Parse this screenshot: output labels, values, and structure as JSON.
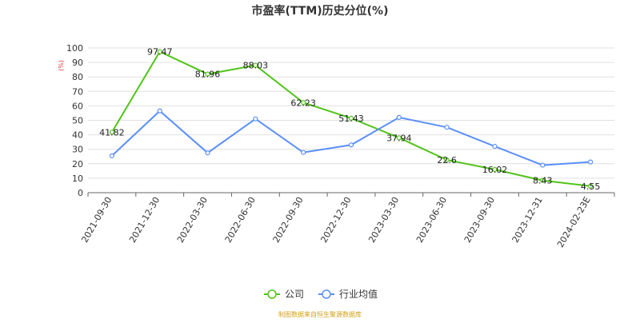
{
  "chart_data": {
    "type": "line",
    "title": "市盈率(TTM)历史分位(%)",
    "unit_label": "(%)",
    "categories": [
      "2021-09-30",
      "2021-12-30",
      "2022-03-30",
      "2022-06-30",
      "2022-09-30",
      "2022-12-30",
      "2023-03-30",
      "2023-06-30",
      "2023-09-30",
      "2023-12-31",
      "2024-02-23E"
    ],
    "series": [
      {
        "name": "公司",
        "color": "#52c41a",
        "values": [
          41.82,
          97.47,
          81.96,
          88.03,
          62.23,
          51.43,
          37.94,
          22.6,
          16.02,
          8.43,
          4.55
        ],
        "labels": [
          "41.82",
          "97.47",
          "81.96",
          "88.03",
          "62.23",
          "51.43",
          "37.94",
          "22.6",
          "16.02",
          "8.43",
          "4.55"
        ]
      },
      {
        "name": "行业均值",
        "color": "#5b8ff9",
        "values": [
          25.5,
          56.5,
          27.5,
          51,
          27.8,
          33,
          52,
          45.2,
          32,
          19,
          21.2
        ],
        "labels": []
      }
    ],
    "yticks": [
      0,
      10,
      20,
      30,
      40,
      50,
      60,
      70,
      80,
      90,
      100
    ],
    "ylim": [
      0,
      100
    ],
    "grid": true,
    "legend_position": "bottom-center"
  },
  "footer": {
    "source": "制图数据来自恒生聚源数据库"
  }
}
